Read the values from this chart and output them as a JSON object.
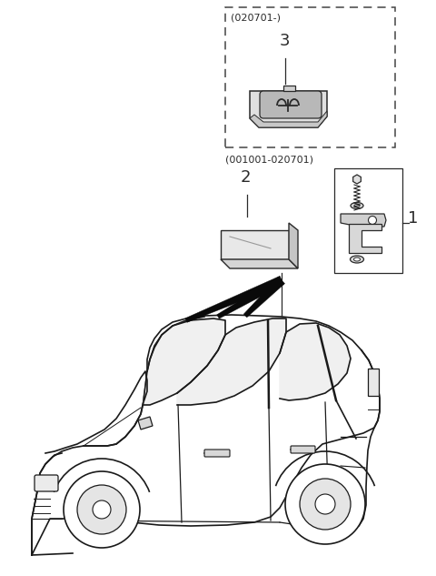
{
  "background_color": "#ffffff",
  "fig_width": 4.8,
  "fig_height": 6.33,
  "dpi": 100,
  "label1": "1",
  "label2": "2",
  "label3": "3",
  "date_range_top": "(020701-)",
  "date_range_mid": "(001001-020701)",
  "line_color": "#2a2a2a",
  "dashed_box_color": "#444444",
  "car_color": "#1a1a1a"
}
